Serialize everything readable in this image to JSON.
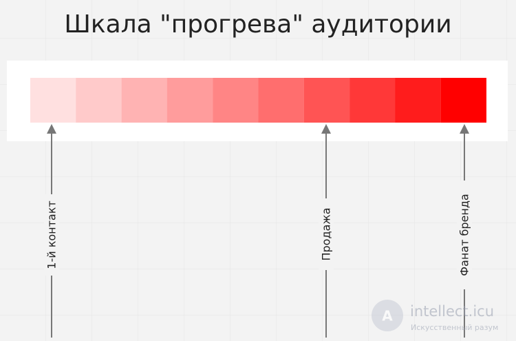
{
  "header": {
    "title": "Шкала \"прогрева\" аудитории"
  },
  "markers": [
    {
      "label": "1-й контакт"
    },
    {
      "label": "Продажа"
    },
    {
      "label": "Фанат бренда"
    }
  ],
  "watermark": {
    "name": "intellect.icu",
    "tagline": "Искусственный разум"
  }
}
